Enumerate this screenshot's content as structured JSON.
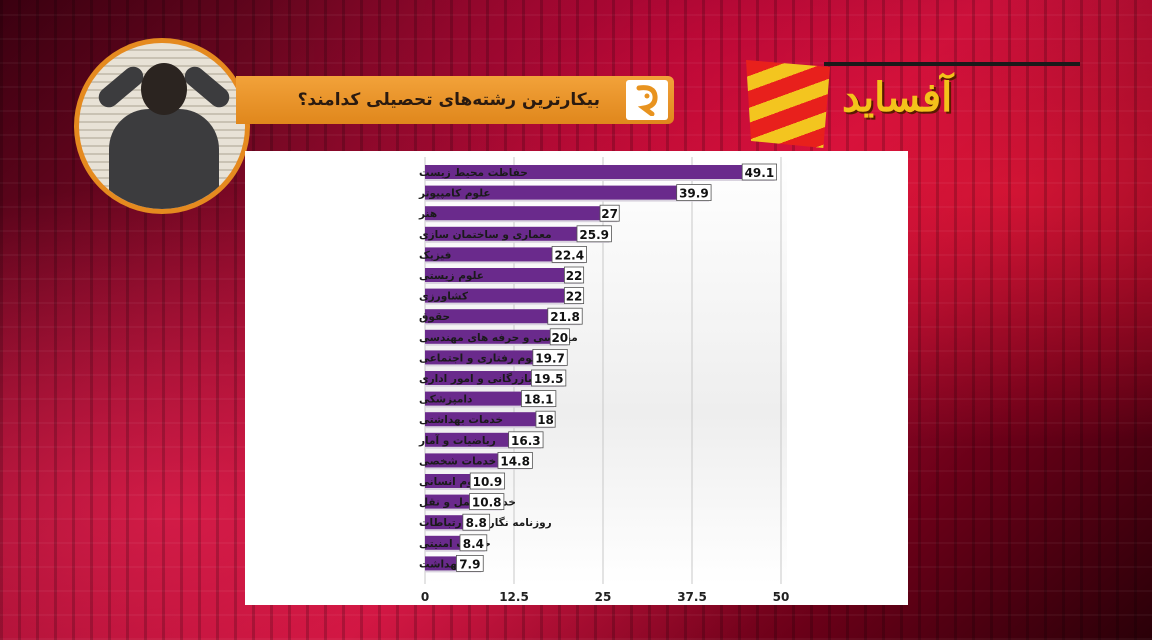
{
  "header": {
    "title": "بیکارترین رشته‌های تحصیلی کدامند؟",
    "brand": "آفساید"
  },
  "colors": {
    "bar": "#6a2a8c",
    "banner": "#e8931f",
    "brand_text": "#f4c21a"
  },
  "icons": {
    "logo": "news-logo-icon",
    "photo": "unemployed-man-photo"
  },
  "chart_data": {
    "type": "bar",
    "orientation": "horizontal",
    "categories": [
      "حفاظت محیط زیست",
      "علوم کامپیوتر",
      "هنر",
      "معماری و ساختمان سازی",
      "فیزیک",
      "علوم زیستی",
      "کشاورزی",
      "حقوق",
      "مهندسی و حرفه های مهندسی",
      "علوم رفتاری و اجتماعی",
      "بازرگانی و امور اداری",
      "دامپزشکی",
      "خدمات بهداشتی",
      "ریاضیات و آمار",
      "خدمات شخصی",
      "علوم انسانی",
      "خدمات حمل و نقل",
      "روزنامه نگاری و ارتباطات",
      "خدمات امنیتی",
      "بهداشت"
    ],
    "values": [
      49.1,
      39.9,
      27,
      25.9,
      22.4,
      22,
      22,
      21.8,
      20,
      19.7,
      19.5,
      18.1,
      18,
      16.3,
      14.8,
      10.9,
      10.8,
      8.8,
      8.4,
      7.9
    ],
    "value_labels": [
      "49.1",
      "39.9",
      "27",
      "25.9",
      "22.4",
      "22",
      "22",
      "21.8",
      "20",
      "19.7",
      "19.5",
      "18.1",
      "18",
      "16.3",
      "14.8",
      "10.9",
      "10.8",
      "8.8",
      "8.4",
      "7.9"
    ],
    "x_ticks": [
      "0",
      "12.5",
      "25",
      "37.5",
      "50"
    ],
    "xlim": [
      0,
      50
    ],
    "grid": true,
    "legend": false
  }
}
